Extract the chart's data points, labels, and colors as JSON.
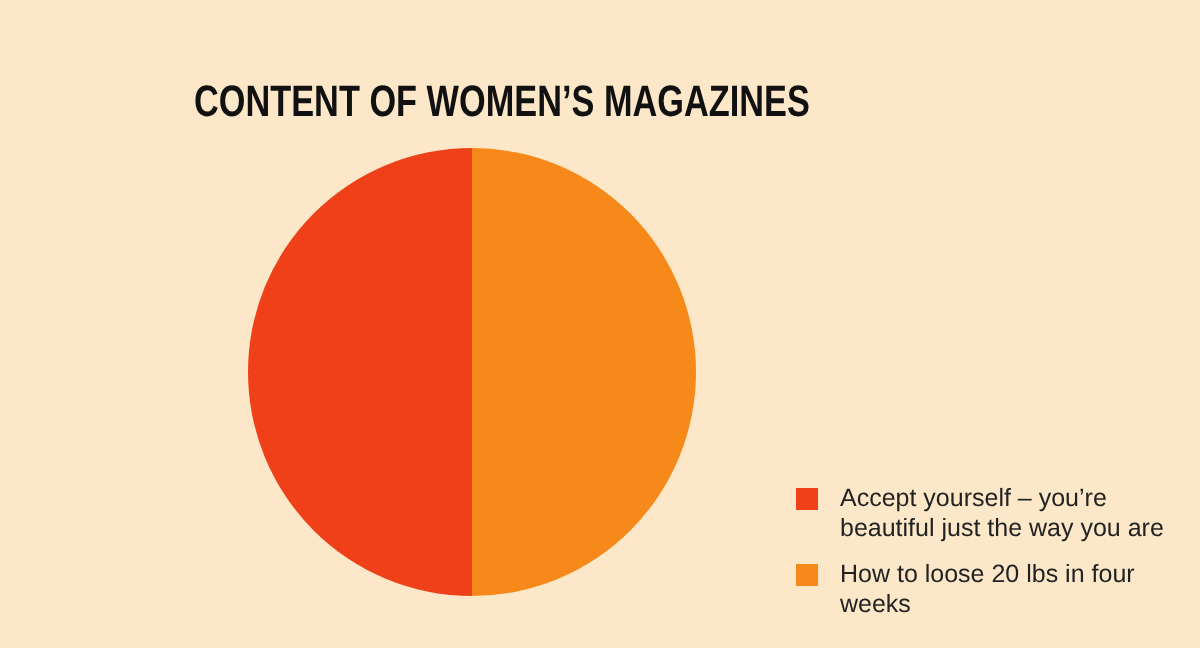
{
  "chart_data": {
    "type": "pie",
    "title": "CONTENT OF WOMEN’S MAGAZINES",
    "categories": [
      "Accept yourself – you’re beautiful just the way you are",
      "How to loose 20 lbs in four weeks"
    ],
    "values": [
      50,
      50
    ],
    "colors": [
      "#ef4019",
      "#f7891b"
    ],
    "legend": "bottom right"
  }
}
